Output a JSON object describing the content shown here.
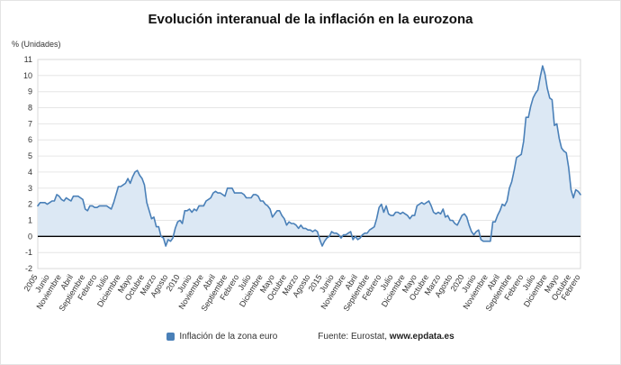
{
  "title": "Evolución interanual de la inflación en la eurozona",
  "y_axis_title": "% (Unidades)",
  "legend": {
    "label": "Inflación de la zona euro"
  },
  "source": {
    "prefix": "Fuente: Eurostat, ",
    "link": "www.epdata.es"
  },
  "colors": {
    "line": "#4a80b8",
    "fill": "#dce8f4",
    "grid": "#e6e6e6",
    "zero_line": "#000000",
    "border": "#d9d9d9",
    "axis_text": "#333333"
  },
  "chart_data": {
    "type": "area",
    "title": "Evolución interanual de la inflación en la eurozona",
    "xlabel": "",
    "ylabel": "% (Unidades)",
    "ylim": [
      -2,
      11
    ],
    "y_ticks": [
      -2,
      -1,
      0,
      1,
      2,
      3,
      4,
      5,
      6,
      7,
      8,
      9,
      10,
      11
    ],
    "grid": true,
    "legend_position": "bottom",
    "x_frequency": "monthly",
    "x_range": [
      "Enero 2005",
      "Febrero 2024"
    ],
    "tick_positions": [
      0,
      5,
      10,
      15,
      20,
      25,
      30,
      35,
      40,
      45,
      50,
      55,
      60,
      65,
      70,
      75,
      80,
      85,
      90,
      95,
      100,
      105,
      110,
      115,
      120,
      125,
      130,
      135,
      140,
      145,
      150,
      155,
      160,
      165,
      170,
      175,
      180,
      185,
      190,
      195,
      200,
      205,
      210,
      215,
      220,
      225,
      229
    ],
    "tick_labels": [
      "2005",
      "Junio",
      "Noviembre",
      "Abril",
      "Septiembre",
      "Febrero",
      "Julio",
      "Diciembre",
      "Mayo",
      "Octubre",
      "Marzo",
      "Agosto",
      "2010",
      "Junio",
      "Noviembre",
      "Abril",
      "Septiembre",
      "Febrero",
      "Julio",
      "Diciembre",
      "Mayo",
      "Octubre",
      "Marzo",
      "Agosto",
      "2015",
      "Junio",
      "Noviembre",
      "Abril",
      "Septiembre",
      "Febrero",
      "Julio",
      "Diciembre",
      "Mayo",
      "Octubre",
      "Marzo",
      "Agosto",
      "2020",
      "Junio",
      "Noviembre",
      "Abril",
      "Septiembre",
      "Febrero",
      "Julio",
      "Diciembre",
      "Mayo",
      "Octubre",
      "Febrero"
    ],
    "values": [
      1.9,
      2.1,
      2.1,
      2.1,
      2.0,
      2.1,
      2.2,
      2.2,
      2.6,
      2.5,
      2.3,
      2.2,
      2.4,
      2.3,
      2.2,
      2.5,
      2.5,
      2.5,
      2.4,
      2.3,
      1.7,
      1.6,
      1.9,
      1.9,
      1.8,
      1.8,
      1.9,
      1.9,
      1.9,
      1.9,
      1.8,
      1.7,
      2.1,
      2.6,
      3.1,
      3.1,
      3.2,
      3.3,
      3.6,
      3.3,
      3.7,
      4.0,
      4.1,
      3.8,
      3.6,
      3.2,
      2.1,
      1.6,
      1.1,
      1.2,
      0.6,
      0.6,
      0.0,
      -0.1,
      -0.6,
      -0.2,
      -0.3,
      -0.1,
      0.5,
      0.9,
      1.0,
      0.8,
      1.6,
      1.6,
      1.7,
      1.5,
      1.7,
      1.6,
      1.9,
      1.9,
      1.9,
      2.2,
      2.3,
      2.4,
      2.7,
      2.8,
      2.7,
      2.7,
      2.6,
      2.5,
      3.0,
      3.0,
      3.0,
      2.7,
      2.7,
      2.7,
      2.7,
      2.6,
      2.4,
      2.4,
      2.4,
      2.6,
      2.6,
      2.5,
      2.2,
      2.2,
      2.0,
      1.9,
      1.7,
      1.2,
      1.4,
      1.6,
      1.6,
      1.3,
      1.1,
      0.7,
      0.9,
      0.8,
      0.8,
      0.7,
      0.5,
      0.7,
      0.5,
      0.5,
      0.4,
      0.4,
      0.3,
      0.4,
      0.3,
      -0.2,
      -0.6,
      -0.3,
      -0.1,
      0.0,
      0.3,
      0.2,
      0.2,
      0.1,
      -0.1,
      0.1,
      0.1,
      0.2,
      0.3,
      -0.2,
      0.0,
      -0.2,
      -0.1,
      0.1,
      0.2,
      0.2,
      0.4,
      0.5,
      0.6,
      1.1,
      1.8,
      2.0,
      1.5,
      1.9,
      1.4,
      1.3,
      1.3,
      1.5,
      1.5,
      1.4,
      1.5,
      1.4,
      1.3,
      1.1,
      1.3,
      1.3,
      1.9,
      2.0,
      2.1,
      2.0,
      2.1,
      2.2,
      1.9,
      1.5,
      1.4,
      1.5,
      1.4,
      1.7,
      1.2,
      1.3,
      1.0,
      1.0,
      0.8,
      0.7,
      1.0,
      1.3,
      1.4,
      1.2,
      0.7,
      0.3,
      0.1,
      0.3,
      0.4,
      -0.2,
      -0.3,
      -0.3,
      -0.3,
      -0.3,
      0.9,
      0.9,
      1.3,
      1.6,
      2.0,
      1.9,
      2.2,
      3.0,
      3.4,
      4.1,
      4.9,
      5.0,
      5.1,
      5.9,
      7.4,
      7.4,
      8.1,
      8.6,
      8.9,
      9.1,
      9.9,
      10.6,
      10.1,
      9.2,
      8.6,
      8.5,
      6.9,
      7.0,
      6.1,
      5.5,
      5.3,
      5.2,
      4.3,
      2.9,
      2.4,
      2.9,
      2.8,
      2.6
    ]
  }
}
